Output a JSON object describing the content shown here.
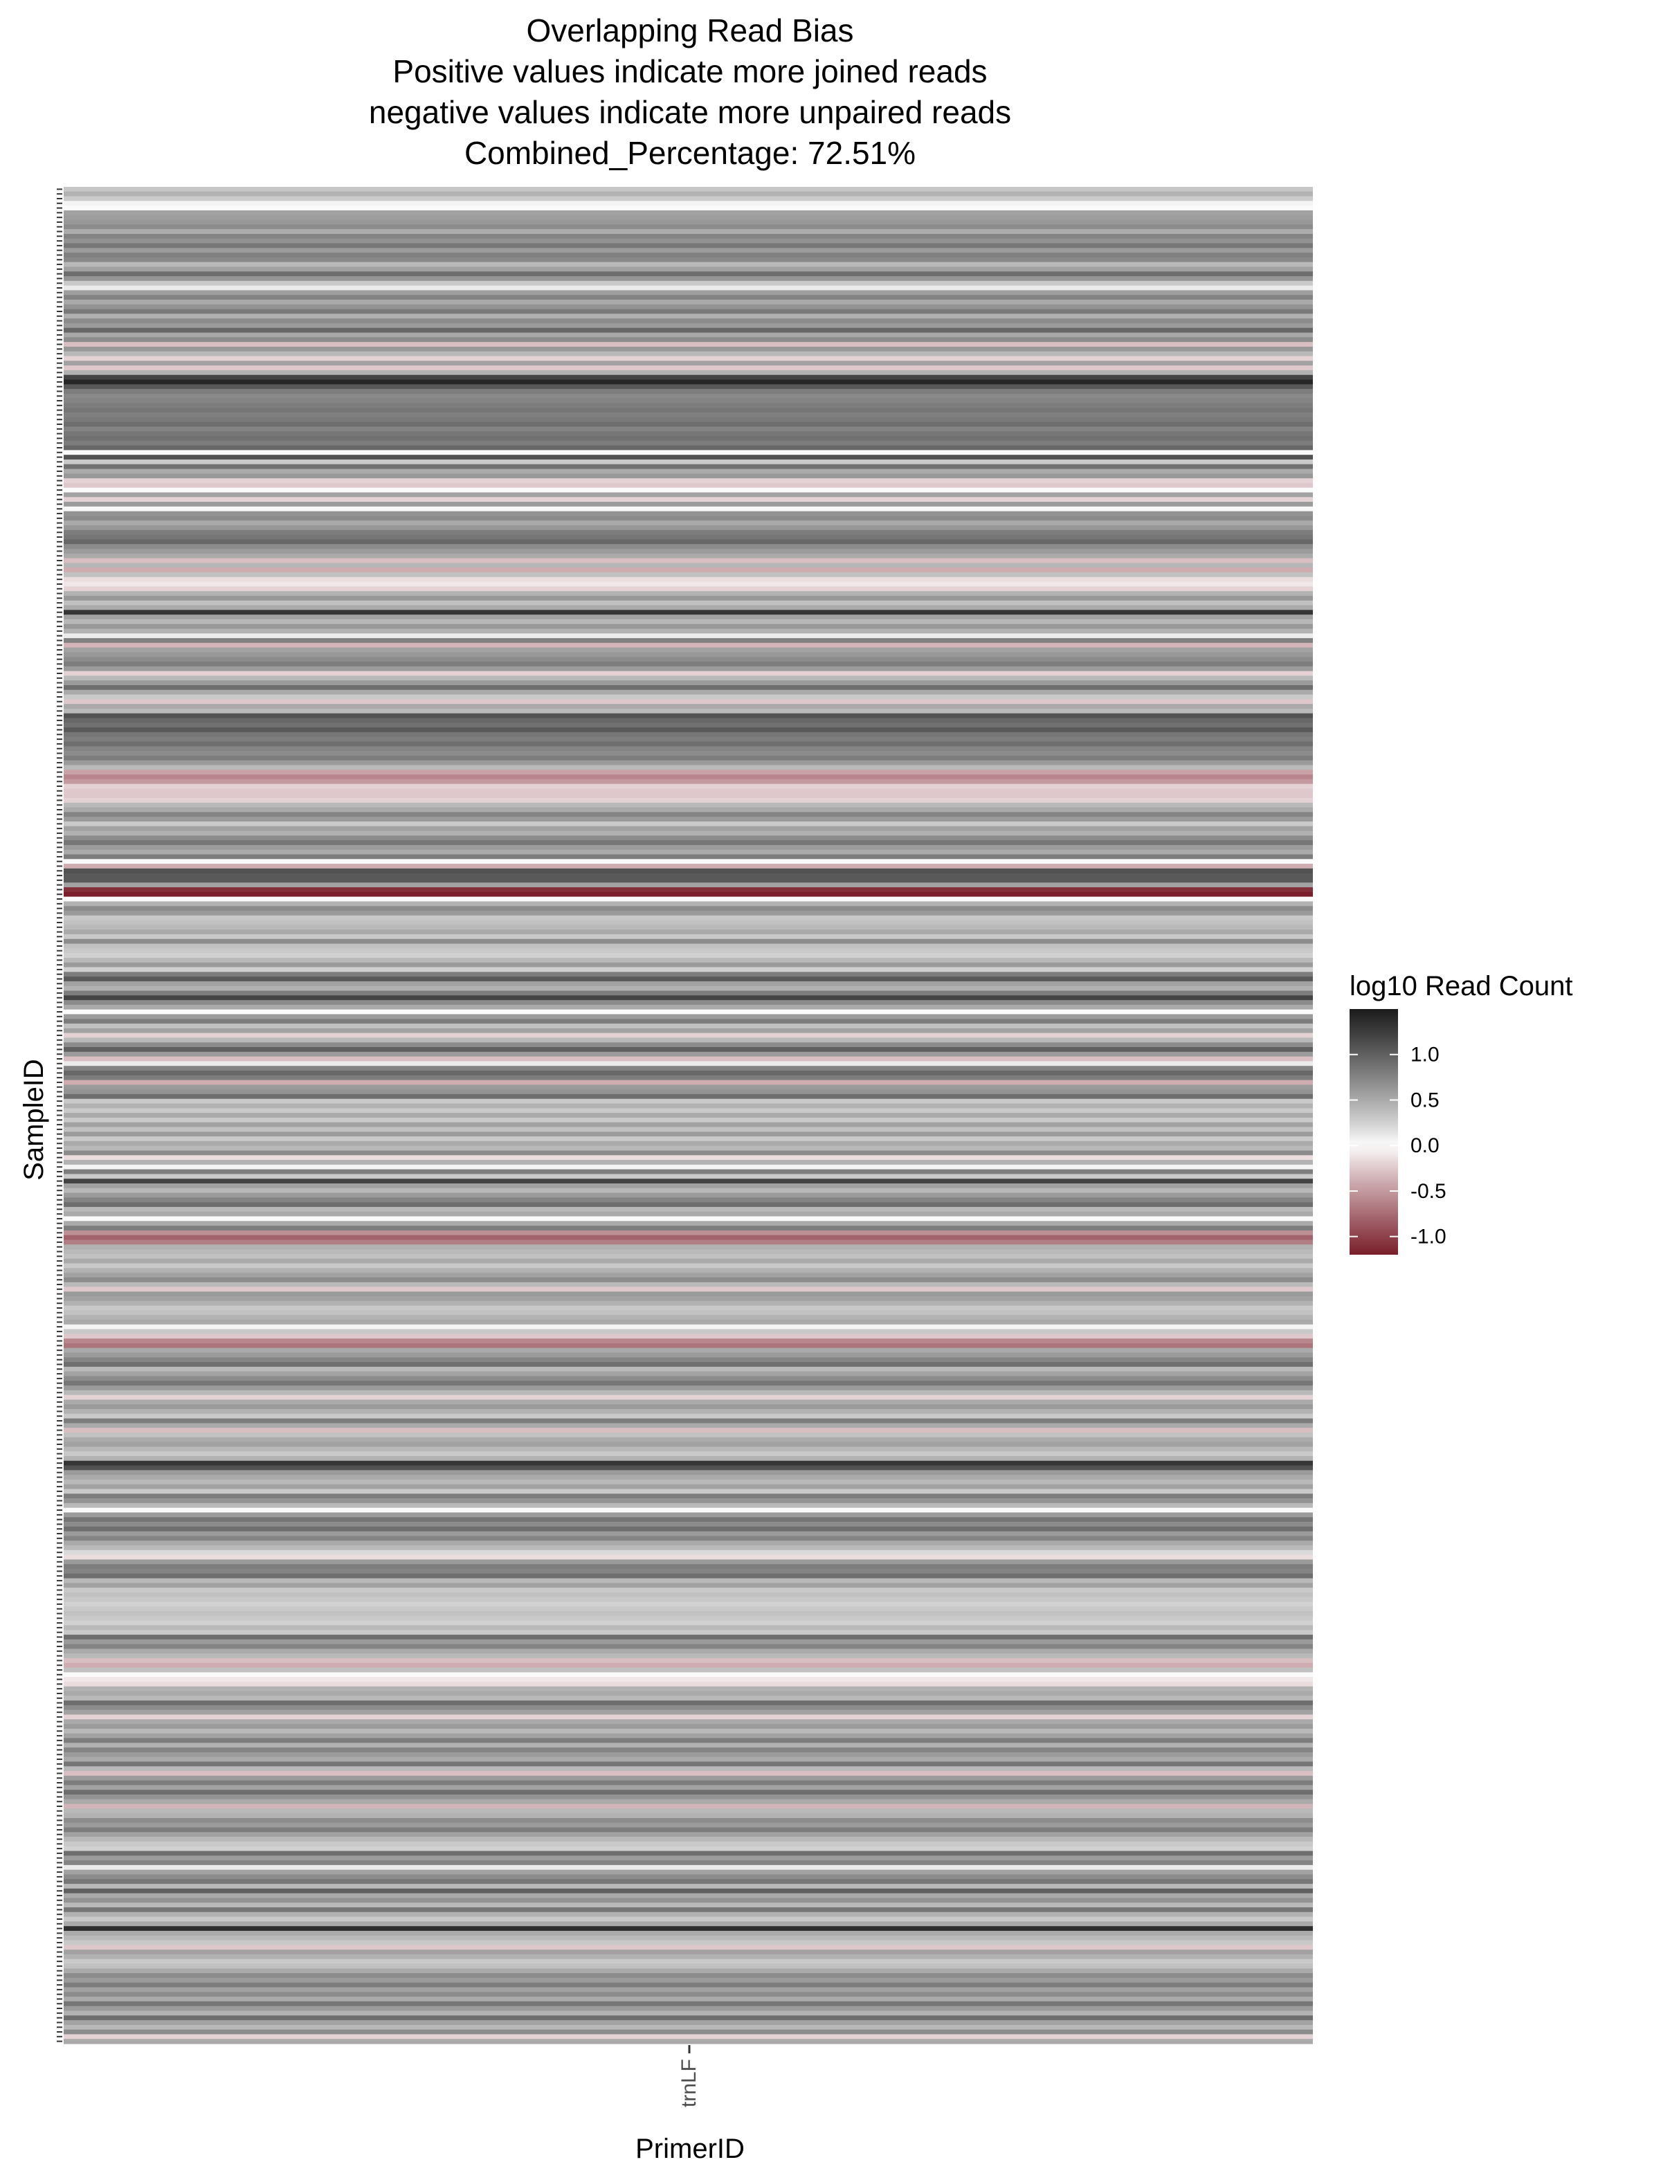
{
  "chart_data": {
    "type": "heatmap",
    "title": "Overlapping Read Bias",
    "subtitle": [
      "Positive values indicate more joined reads",
      "negative values indicate more unpaired reads",
      "Combined_Percentage: 72.51%"
    ],
    "xlabel": "PrimerID",
    "ylabel": "SampleID",
    "x_categories": [
      "trnLF"
    ],
    "legend": {
      "title": "log10 Read Count",
      "placement": "right",
      "range": [
        -1.2,
        1.5
      ],
      "ticks": [
        -1.0,
        -0.5,
        0.0,
        0.5,
        1.0
      ],
      "tick_labels": [
        "-1.0",
        "-0.5",
        "0.0",
        "0.5",
        "1.0"
      ],
      "colors": {
        "low": "#7a1f2b",
        "mid": "#ffffff",
        "high": "#1a1a1a"
      }
    },
    "grid": false,
    "values": [
      0.32,
      0.45,
      0.28,
      0.05,
      0.02,
      0.55,
      0.58,
      0.62,
      0.7,
      0.48,
      0.75,
      0.66,
      0.85,
      0.6,
      0.78,
      0.72,
      0.4,
      0.56,
      0.9,
      0.64,
      0.3,
      0.1,
      0.58,
      0.76,
      0.5,
      0.65,
      0.82,
      0.46,
      0.7,
      0.6,
      0.95,
      0.52,
      0.7,
      -0.3,
      0.62,
      0.4,
      -0.2,
      0.55,
      -0.25,
      0.45,
      1.2,
      1.4,
      1.05,
      0.8,
      0.72,
      0.75,
      0.8,
      0.85,
      0.78,
      0.82,
      0.9,
      0.76,
      0.85,
      0.88,
      0.8,
      0.95,
      0.02,
      1.1,
      0.3,
      0.88,
      0.5,
      0.62,
      -0.2,
      -0.25,
      0.02,
      0.55,
      -0.2,
      0.6,
      0.03,
      0.65,
      0.7,
      0.5,
      0.62,
      0.8,
      0.85,
      0.95,
      0.7,
      0.6,
      0.5,
      -0.3,
      0.42,
      -0.4,
      0.35,
      -0.15,
      -0.1,
      -0.2,
      0.45,
      0.62,
      0.35,
      0.5,
      1.3,
      0.55,
      0.4,
      0.62,
      0.45,
      0.1,
      0.78,
      -0.35,
      0.55,
      0.62,
      0.7,
      0.8,
      0.6,
      -0.2,
      0.4,
      0.6,
      0.9,
      0.5,
      0.3,
      -0.25,
      0.5,
      0.4,
      1.1,
      0.95,
      0.88,
      1.05,
      0.85,
      0.8,
      0.9,
      0.75,
      0.7,
      0.8,
      0.6,
      0.4,
      -0.45,
      -0.6,
      -0.5,
      -0.2,
      -0.25,
      -0.25,
      -0.2,
      0.4,
      0.5,
      0.75,
      0.6,
      0.3,
      0.55,
      0.45,
      0.7,
      0.85,
      0.6,
      0.5,
      0.8,
      0.02,
      -0.4,
      1.1,
      1.05,
      1.05,
      0.55,
      -1.1,
      -1.2,
      0.02,
      0.45,
      0.7,
      0.6,
      0.3,
      0.35,
      0.4,
      0.5,
      0.3,
      0.7,
      0.35,
      0.3,
      0.25,
      0.4,
      0.6,
      0.25,
      0.8,
      1.05,
      0.55,
      0.45,
      0.8,
      1.2,
      0.7,
      0.5,
      0.02,
      0.6,
      0.8,
      0.35,
      0.55,
      -0.2,
      0.4,
      0.7,
      1.0,
      0.6,
      -0.3,
      0.1,
      0.75,
      0.95,
      0.8,
      -0.4,
      0.6,
      0.65,
      0.9,
      0.3,
      0.45,
      0.3,
      0.5,
      0.3,
      0.55,
      0.35,
      0.6,
      0.3,
      0.5,
      0.4,
      0.7,
      -0.15,
      0.45,
      0.05,
      0.8,
      0.3,
      1.2,
      0.55,
      0.4,
      0.6,
      0.75,
      0.9,
      0.4,
      0.5,
      0.02,
      0.5,
      0.8,
      -0.55,
      -0.8,
      -0.65,
      0.45,
      0.4,
      0.35,
      0.5,
      0.3,
      0.45,
      0.55,
      0.7,
      0.4,
      -0.25,
      0.6,
      0.55,
      0.45,
      0.3,
      0.35,
      0.45,
      0.5,
      0.05,
      0.3,
      -0.25,
      -0.6,
      -0.7,
      0.5,
      0.6,
      0.75,
      0.9,
      0.4,
      0.55,
      0.7,
      0.85,
      0.6,
      0.4,
      -0.2,
      0.5,
      0.6,
      0.45,
      0.3,
      0.8,
      0.5,
      -0.3,
      0.35,
      0.5,
      0.55,
      0.4,
      0.3,
      0.45,
      1.3,
      1.1,
      0.6,
      0.5,
      0.4,
      0.55,
      0.3,
      0.8,
      0.65,
      0.4,
      0.02,
      0.6,
      0.85,
      0.7,
      0.9,
      0.6,
      0.75,
      0.5,
      0.4,
      0.2,
      -0.15,
      0.6,
      0.8,
      0.75,
      0.9,
      0.4,
      0.55,
      0.3,
      0.35,
      0.3,
      0.25,
      0.3,
      0.35,
      0.3,
      0.25,
      0.4,
      0.3,
      0.9,
      0.6,
      0.75,
      0.5,
      0.4,
      -0.3,
      -0.4,
      0.35,
      0.02,
      -0.1,
      -0.15,
      0.45,
      0.5,
      0.4,
      0.9,
      0.7,
      0.55,
      -0.2,
      0.5,
      0.6,
      0.4,
      0.55,
      0.8,
      0.45,
      0.75,
      0.6,
      0.5,
      0.85,
      0.4,
      -0.3,
      0.6,
      0.8,
      0.55,
      0.9,
      0.65,
      0.5,
      -0.35,
      0.4,
      0.45,
      0.7,
      0.6,
      0.8,
      0.55,
      0.4,
      0.3,
      0.25,
      0.9,
      0.6,
      0.75,
      0.1,
      0.55,
      0.7,
      0.85,
      0.4,
      1.0,
      0.5,
      0.65,
      0.4,
      0.85,
      0.45,
      0.3,
      0.5,
      1.35,
      0.5,
      0.4,
      0.3,
      -0.25,
      0.55,
      0.45,
      0.3,
      0.35,
      0.5,
      0.7,
      0.6,
      0.8,
      0.55,
      0.7,
      0.5,
      0.85,
      0.6,
      0.45,
      0.9,
      0.55,
      0.4,
      0.7,
      -0.2,
      0.5
    ]
  }
}
